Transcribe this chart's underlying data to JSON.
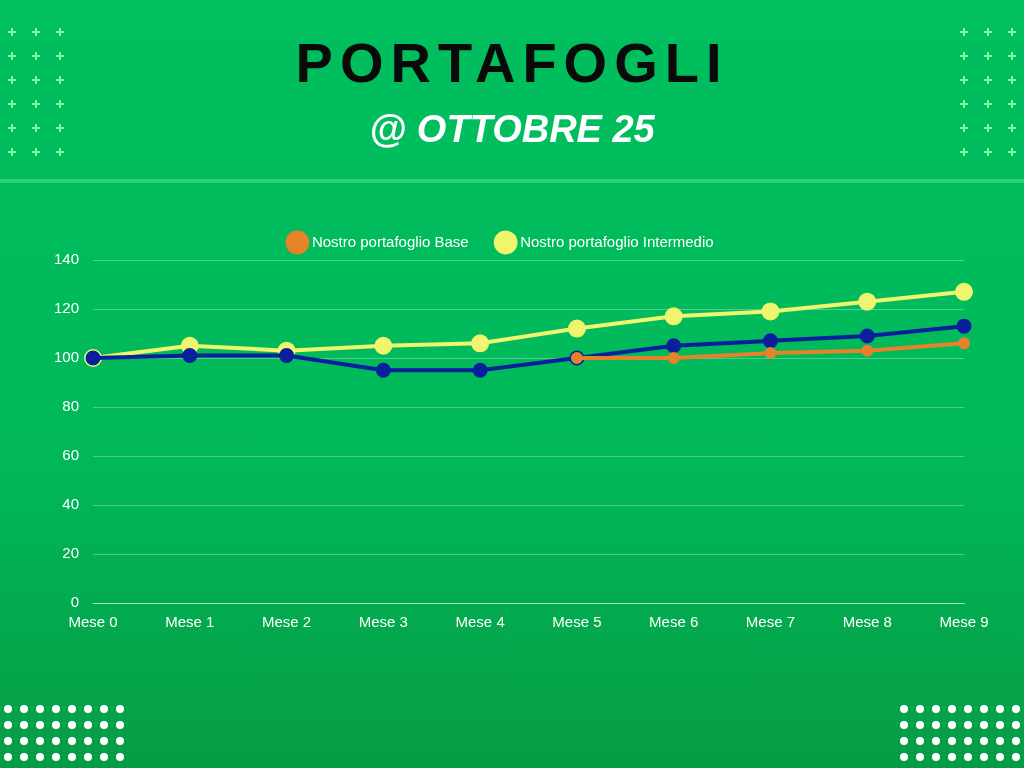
{
  "chart_data": {
    "type": "line",
    "title": "PORTAFOGLI",
    "subtitle": "@ OTTOBRE 25",
    "categories": [
      "Mese 0",
      "Mese 1",
      "Mese 2",
      "Mese 3",
      "Mese 4",
      "Mese 5",
      "Mese 6",
      "Mese 7",
      "Mese 8",
      "Mese 9"
    ],
    "series": [
      {
        "name": "Nostro portafoglio Intermedio",
        "color": "#f0f56e",
        "values": [
          100,
          105,
          103,
          105,
          106,
          112,
          117,
          119,
          123,
          127
        ]
      },
      {
        "color": "#0a1f9c",
        "values": [
          100,
          101,
          101,
          95,
          95,
          100,
          105,
          107,
          109,
          113
        ]
      },
      {
        "name": "Nostro portafoglio Base",
        "color": "#e8822a",
        "values": [
          null,
          null,
          null,
          null,
          null,
          100,
          100,
          102,
          103,
          106
        ]
      }
    ],
    "ylim": [
      0,
      140
    ],
    "yticks": [
      0,
      20,
      40,
      60,
      80,
      100,
      120,
      140
    ],
    "grid": "y",
    "legend": "top",
    "marker": "circle",
    "line_style": "solid"
  }
}
